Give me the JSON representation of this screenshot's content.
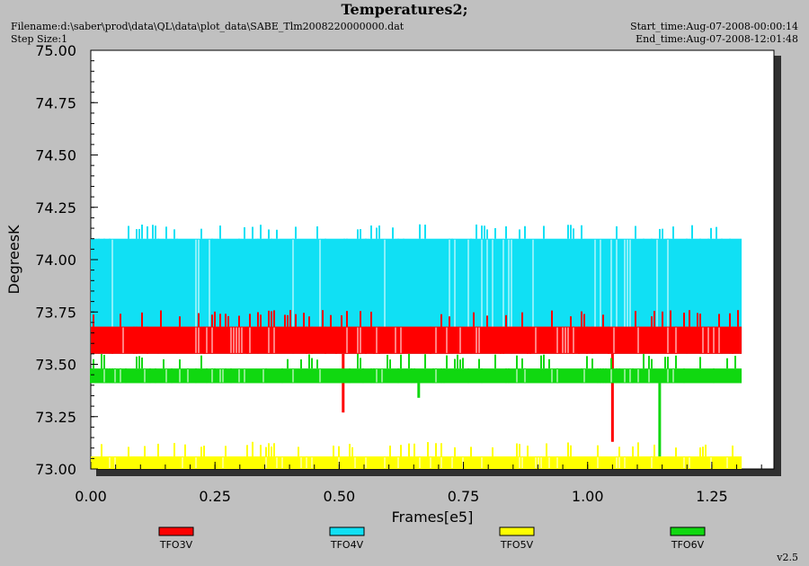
{
  "header": {
    "title": "Temperatures2;",
    "filename": "Filename:d:\\saber\\prod\\data\\QL\\data\\plot_data\\SABE_Tlm2008220000000.dat",
    "step_size": "Step Size:1",
    "start_time": "Start_time:Aug-07-2008-00:00:14",
    "end_time": "End_time:Aug-07-2008-12:01:48",
    "version": "v2.5"
  },
  "chart_data": {
    "type": "line",
    "xlabel": "Frames[e5]",
    "ylabel": "DegreesK",
    "xlim": [
      0,
      1.375
    ],
    "ylim": [
      73.0,
      75.0
    ],
    "x_ticks": [
      "0.00",
      "0.25",
      "0.50",
      "0.75",
      "1.00",
      "1.25"
    ],
    "x_tick_values": [
      0,
      0.25,
      0.5,
      0.75,
      1.0,
      1.25
    ],
    "y_ticks": [
      "73.00",
      "73.25",
      "73.50",
      "73.75",
      "74.00",
      "74.25",
      "74.50",
      "74.75",
      "75.00"
    ],
    "y_tick_values": [
      73.0,
      73.25,
      73.5,
      73.75,
      74.0,
      74.25,
      74.5,
      74.75,
      75.0
    ],
    "grid": false,
    "legend_position": "bottom",
    "x_end": 1.31,
    "series": [
      {
        "name": "TFO4V",
        "color": "#10e0f4",
        "low": 73.55,
        "high": 74.1,
        "spike_high": 74.17,
        "spike_low": 73.5
      },
      {
        "name": "TFO3V",
        "color": "#ff0000",
        "low": 73.55,
        "high": 73.68,
        "spike_high": 73.76,
        "spike_low": 73.5,
        "outliers": [
          {
            "x": 0.508,
            "y": 73.27
          },
          {
            "x": 1.05,
            "y": 73.13
          }
        ]
      },
      {
        "name": "TFO6V",
        "color": "#10d810",
        "low": 73.41,
        "high": 73.48,
        "spike_high": 73.55,
        "spike_low": 73.41,
        "outliers": [
          {
            "x": 0.66,
            "y": 73.34
          },
          {
            "x": 1.145,
            "y": 73.0
          }
        ]
      },
      {
        "name": "TFO5V",
        "color": "#ffff00",
        "low": 73.0,
        "high": 73.06,
        "spike_high": 73.13,
        "spike_low": 73.0
      }
    ],
    "legend": [
      {
        "name": "TFO3V",
        "color": "#ff0000"
      },
      {
        "name": "TFO4V",
        "color": "#10e0f4"
      },
      {
        "name": "TFO5V",
        "color": "#ffff00"
      },
      {
        "name": "TFO6V",
        "color": "#10d810"
      }
    ]
  }
}
